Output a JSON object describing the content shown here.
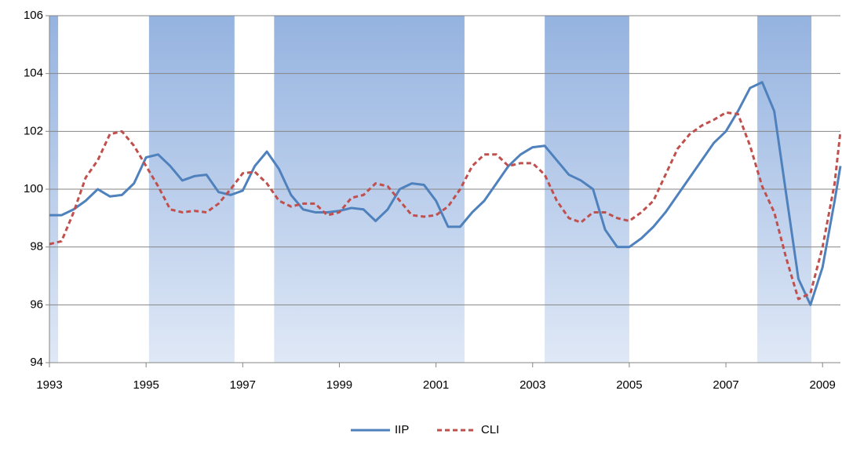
{
  "chart_data": {
    "type": "line",
    "x": [
      1993,
      1993.25,
      1993.5,
      1993.75,
      1994,
      1994.25,
      1994.5,
      1994.75,
      1995,
      1995.25,
      1995.5,
      1995.75,
      1996,
      1996.25,
      1996.5,
      1996.75,
      1997,
      1997.25,
      1997.5,
      1997.75,
      1998,
      1998.25,
      1998.5,
      1998.75,
      1999,
      1999.25,
      1999.5,
      1999.75,
      2000,
      2000.25,
      2000.5,
      2000.75,
      2001,
      2001.25,
      2001.5,
      2001.75,
      2002,
      2002.25,
      2002.5,
      2002.75,
      2003,
      2003.25,
      2003.5,
      2003.75,
      2004,
      2004.25,
      2004.5,
      2004.75,
      2005,
      2005.25,
      2005.5,
      2005.75,
      2006,
      2006.25,
      2006.5,
      2006.75,
      2007,
      2007.25,
      2007.5,
      2007.75,
      2008,
      2008.25,
      2008.5,
      2008.75,
      2009,
      2009.25,
      2009.37
    ],
    "series": [
      {
        "name": "IIP",
        "color": "#4f81bd",
        "dash": false,
        "values": [
          99.1,
          99.1,
          99.3,
          99.6,
          100.0,
          99.75,
          99.8,
          100.2,
          101.1,
          101.2,
          100.8,
          100.3,
          100.45,
          100.5,
          99.9,
          99.8,
          99.95,
          100.8,
          101.3,
          100.7,
          99.8,
          99.3,
          99.2,
          99.2,
          99.25,
          99.35,
          99.3,
          98.9,
          99.3,
          100.0,
          100.2,
          100.15,
          99.6,
          98.7,
          98.7,
          99.2,
          99.6,
          100.2,
          100.8,
          101.2,
          101.45,
          101.5,
          101.0,
          100.5,
          100.3,
          100.0,
          98.6,
          98.0,
          98.0,
          98.3,
          98.7,
          99.2,
          99.8,
          100.4,
          101.0,
          101.6,
          102.0,
          102.7,
          103.5,
          103.7,
          102.7,
          99.8,
          96.9,
          96.0,
          97.3,
          99.6,
          100.8
        ]
      },
      {
        "name": "CLI",
        "color": "#c0504d",
        "dash": true,
        "values": [
          98.1,
          98.2,
          99.2,
          100.4,
          101.0,
          101.9,
          102.0,
          101.5,
          100.8,
          100.1,
          99.3,
          99.2,
          99.25,
          99.2,
          99.5,
          100.0,
          100.55,
          100.6,
          100.2,
          99.6,
          99.4,
          99.5,
          99.5,
          99.1,
          99.2,
          99.7,
          99.8,
          100.2,
          100.1,
          99.6,
          99.1,
          99.05,
          99.1,
          99.4,
          100.0,
          100.8,
          101.2,
          101.2,
          100.8,
          100.9,
          100.9,
          100.5,
          99.6,
          99.0,
          98.85,
          99.2,
          99.2,
          99.0,
          98.9,
          99.2,
          99.6,
          100.5,
          101.4,
          101.9,
          102.2,
          102.4,
          102.65,
          102.6,
          101.5,
          100.1,
          99.2,
          97.6,
          96.2,
          96.4,
          98.0,
          100.2,
          102.0
        ]
      }
    ],
    "shaded_periods": [
      [
        1993,
        1993.18
      ],
      [
        1995.06,
        1996.83
      ],
      [
        1997.65,
        2001.59
      ],
      [
        2003.25,
        2005.0
      ],
      [
        2007.65,
        2008.77
      ]
    ],
    "xlim": [
      1993,
      2009.37
    ],
    "xticks": [
      1993,
      1995,
      1997,
      1999,
      2001,
      2003,
      2005,
      2007,
      2009
    ],
    "ylim": [
      94,
      106
    ],
    "yticks": [
      94,
      96,
      98,
      100,
      102,
      104,
      106
    ],
    "grid": true,
    "legend": "bottom"
  }
}
